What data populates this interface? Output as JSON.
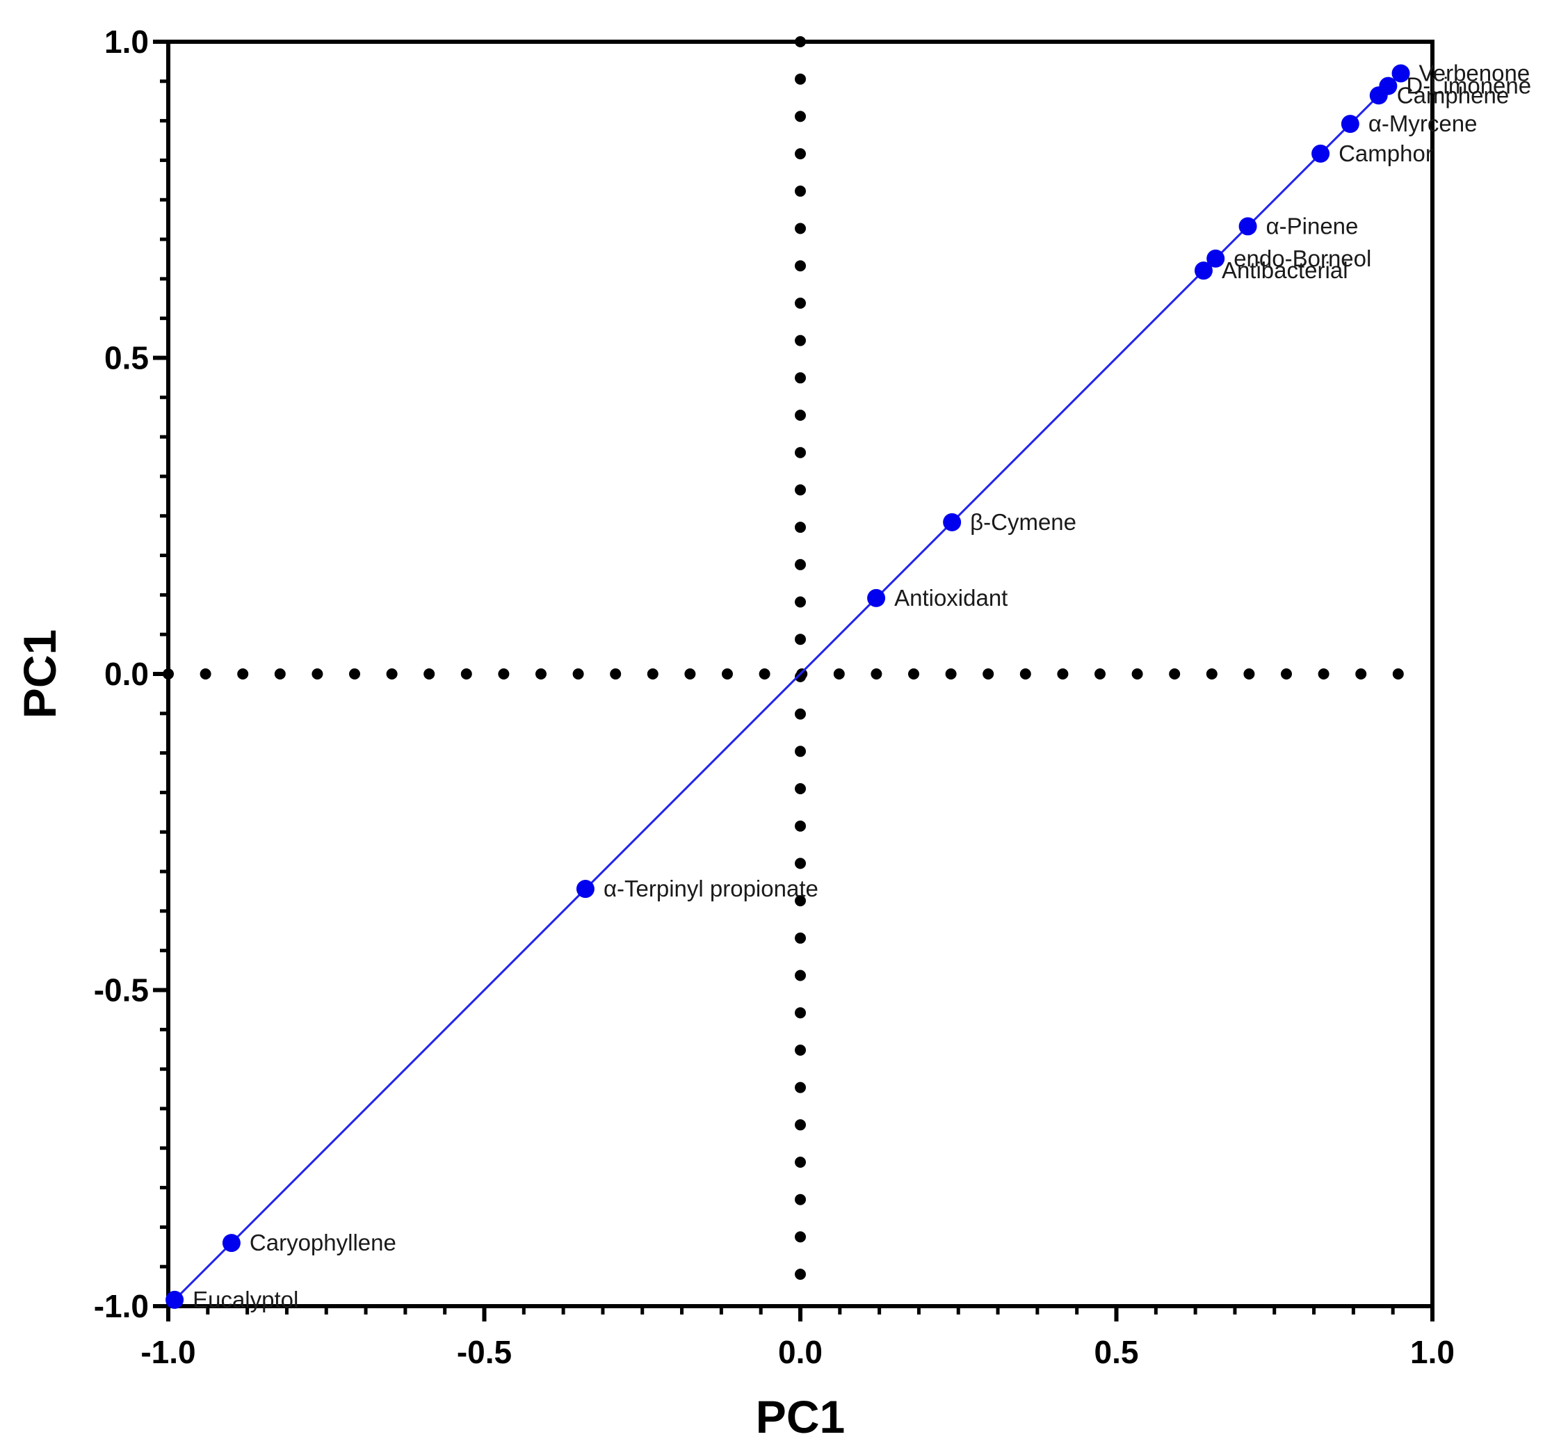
{
  "chart_data": {
    "type": "scatter",
    "xlabel": "PC1",
    "ylabel": "PC1",
    "xlim": [
      -1.0,
      1.0
    ],
    "ylim": [
      -1.0,
      1.0
    ],
    "x_ticks": [
      "-1.0",
      "-0.5",
      "0.0",
      "0.5",
      "1.0"
    ],
    "y_ticks": [
      "-1.0",
      "-0.5",
      "0.0",
      "0.5",
      "1.0"
    ],
    "grid": false,
    "reference_lines": [
      {
        "orientation": "horizontal",
        "value": 0.0,
        "style": "dotted"
      },
      {
        "orientation": "vertical",
        "value": 0.0,
        "style": "dotted"
      }
    ],
    "trend_line": {
      "from": [
        -1.0,
        -1.0
      ],
      "to": [
        0.95,
        0.95
      ],
      "color": "#2222ee"
    },
    "point_color": "#0000ee",
    "points": [
      {
        "label": "Verbenone",
        "x": 0.95,
        "y": 0.95
      },
      {
        "label": "D-Limonene",
        "x": 0.93,
        "y": 0.93
      },
      {
        "label": "Camphene",
        "x": 0.915,
        "y": 0.915
      },
      {
        "label": "α-Myrcene",
        "x": 0.87,
        "y": 0.87
      },
      {
        "label": "Camphor",
        "x": 0.823,
        "y": 0.823
      },
      {
        "label": "α-Pinene",
        "x": 0.708,
        "y": 0.708
      },
      {
        "label": "endo-Borneol",
        "x": 0.657,
        "y": 0.657
      },
      {
        "label": "Antibacterial",
        "x": 0.638,
        "y": 0.638
      },
      {
        "label": "β-Cymene",
        "x": 0.24,
        "y": 0.24
      },
      {
        "label": "Antioxidant",
        "x": 0.12,
        "y": 0.12
      },
      {
        "label": "α-Terpinyl propionate",
        "x": -0.34,
        "y": -0.34
      },
      {
        "label": "Caryophyllene",
        "x": -0.9,
        "y": -0.9
      },
      {
        "label": "Eucalyptol",
        "x": -0.99,
        "y": -0.99
      }
    ]
  }
}
